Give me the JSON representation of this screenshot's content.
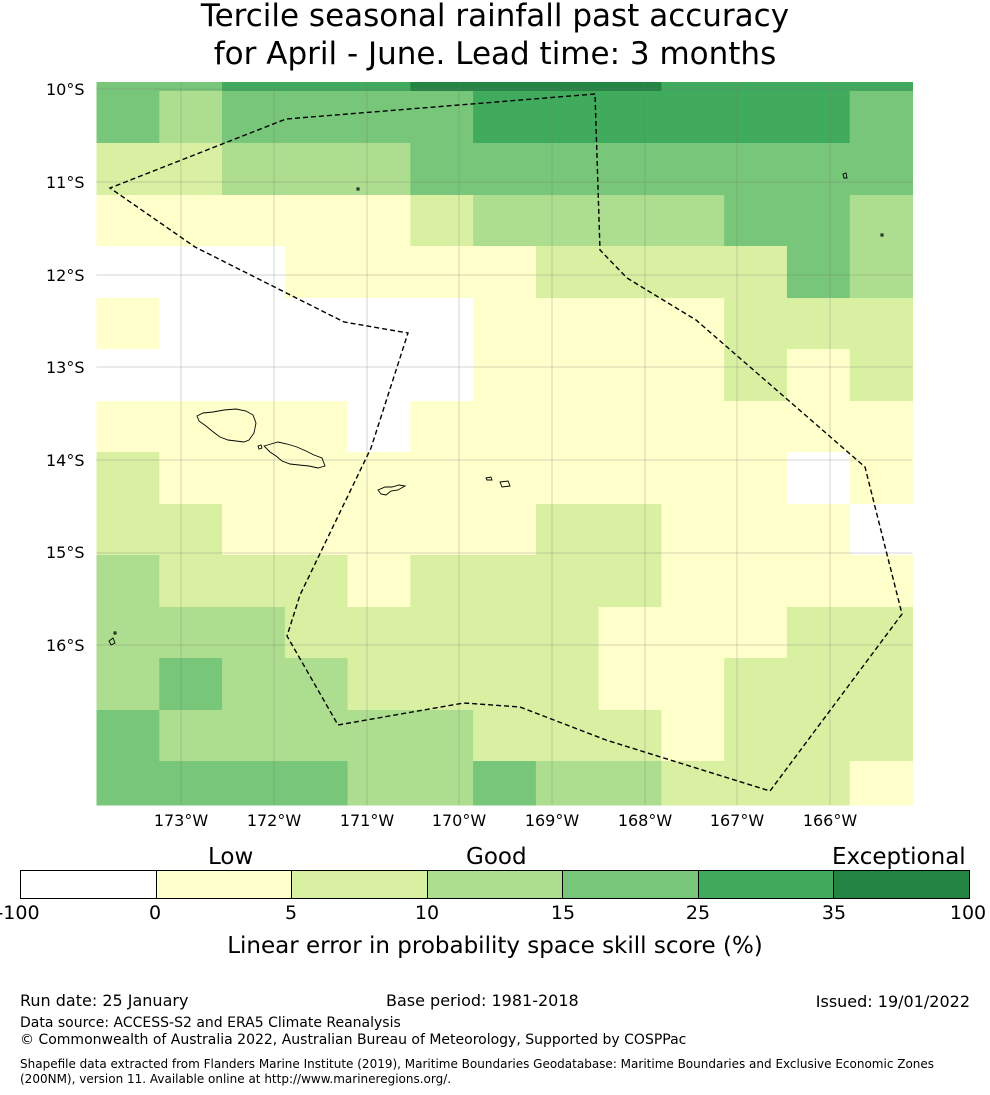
{
  "title": {
    "line1": "Tercile seasonal rainfall past accuracy",
    "line2": "for April - June. Lead time: 3 months"
  },
  "map": {
    "lat_labels": [
      "10°S",
      "11°S",
      "12°S",
      "13°S",
      "14°S",
      "15°S",
      "16°S"
    ],
    "lon_labels": [
      "173°W",
      "172°W",
      "171°W",
      "170°W",
      "169°W",
      "168°W",
      "167°W",
      "166°W"
    ],
    "grid_rows_description": "skill score category index per cell (0=white <0, 1: 0-5, 2: 5-10, 3: 10-15, 4: 15-25, 5: 25-35, 6: 35-100)",
    "grid": [
      [
        4,
        4,
        5,
        5,
        5,
        6,
        6,
        6,
        6,
        5,
        5,
        5,
        5
      ],
      [
        4,
        3,
        4,
        4,
        4,
        4,
        5,
        5,
        5,
        5,
        5,
        5,
        4
      ],
      [
        2,
        2,
        3,
        3,
        3,
        4,
        4,
        4,
        4,
        4,
        4,
        4,
        4
      ],
      [
        1,
        1,
        1,
        1,
        1,
        2,
        3,
        3,
        3,
        3,
        4,
        4,
        3
      ],
      [
        0,
        0,
        0,
        1,
        1,
        1,
        1,
        2,
        2,
        2,
        2,
        4,
        3
      ],
      [
        1,
        0,
        0,
        0,
        0,
        0,
        1,
        1,
        1,
        1,
        2,
        2,
        2
      ],
      [
        0,
        0,
        0,
        0,
        0,
        0,
        1,
        1,
        1,
        1,
        2,
        1,
        2
      ],
      [
        1,
        1,
        1,
        1,
        0,
        1,
        1,
        1,
        1,
        1,
        1,
        1,
        1
      ],
      [
        2,
        1,
        1,
        1,
        1,
        1,
        1,
        1,
        1,
        1,
        1,
        0,
        1
      ],
      [
        2,
        2,
        1,
        1,
        1,
        1,
        1,
        2,
        2,
        1,
        1,
        1,
        0
      ],
      [
        3,
        2,
        2,
        2,
        1,
        2,
        2,
        2,
        2,
        1,
        1,
        1,
        1
      ],
      [
        3,
        3,
        3,
        2,
        2,
        2,
        2,
        2,
        1,
        1,
        1,
        2,
        2
      ],
      [
        3,
        4,
        3,
        3,
        2,
        2,
        2,
        2,
        1,
        1,
        2,
        2,
        2
      ],
      [
        4,
        3,
        3,
        3,
        3,
        3,
        2,
        2,
        2,
        1,
        2,
        2,
        2
      ],
      [
        4,
        4,
        4,
        4,
        3,
        3,
        4,
        3,
        3,
        2,
        2,
        2,
        1
      ]
    ]
  },
  "colorbar": {
    "categories": [
      "Low",
      "Good",
      "Exceptional"
    ],
    "ticks": [
      "-100",
      "0",
      "5",
      "10",
      "15",
      "25",
      "35",
      "100"
    ],
    "colors": [
      "#ffffff",
      "#ffffcc",
      "#d9f0a3",
      "#addd8e",
      "#78c679",
      "#41ab5d",
      "#238443"
    ],
    "label": "Linear error in probability space skill score (%)"
  },
  "footer": {
    "run_date": "Run date: 25 January",
    "base_period": "Base period: 1981-2018",
    "issued": "Issued: 19/01/2022",
    "data_source": "Data source: ACCESS-S2 and ERA5 Climate Reanalysis",
    "copyright": "© Commonwealth of Australia 2022, Australian Bureau of Meteorology, Supported by COSPPac",
    "shapefile": "Shapefile data extracted from Flanders Marine Institute (2019), Maritime Boundaries Geodatabase: Maritime Boundaries and Exclusive Economic Zones (200NM), version 11. Available online at http://www.marineregions.org/."
  }
}
